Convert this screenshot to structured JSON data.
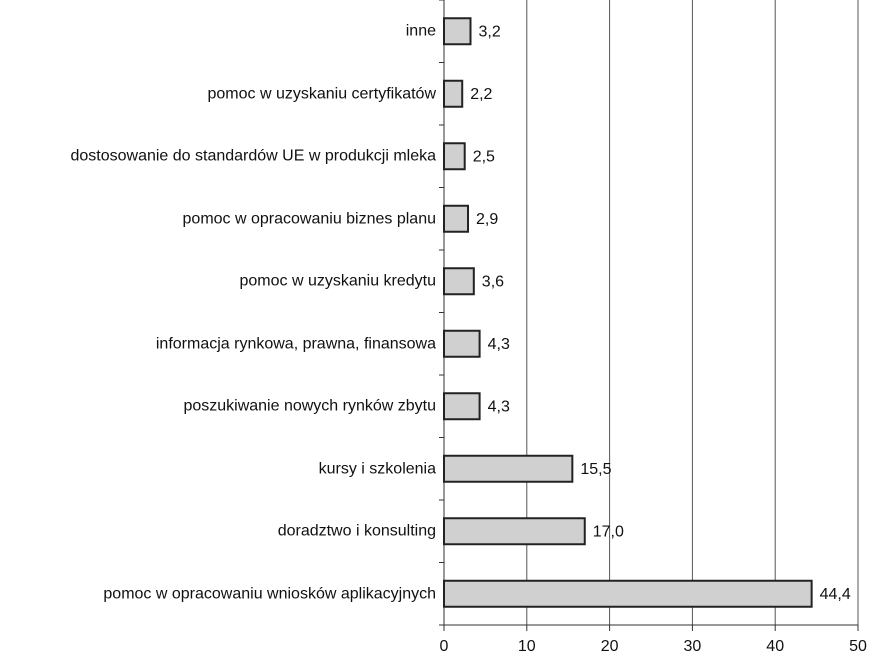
{
  "chart_data": {
    "type": "bar",
    "orientation": "horizontal",
    "categories": [
      "inne",
      "pomoc w uzyskaniu certyfikatów",
      "dostosowanie do standardów UE w produkcji mleka",
      "pomoc w opracowaniu biznes planu",
      "pomoc w uzyskaniu kredytu",
      "informacja rynkowa, prawna, finansowa",
      "poszukiwanie nowych rynków zbytu",
      "kursy i szkolenia",
      "doradztwo i konsulting",
      "pomoc w opracowaniu wniosków aplikacyjnych"
    ],
    "values": [
      3.2,
      2.2,
      2.5,
      2.9,
      3.6,
      4.3,
      4.3,
      15.5,
      17.0,
      44.4
    ],
    "value_labels": [
      "3,2",
      "2,2",
      "2,5",
      "2,9",
      "3,6",
      "4,3",
      "4,3",
      "15,5",
      "17,0",
      "44,4"
    ],
    "color": "#d0d0d0",
    "xlim": [
      0,
      50
    ],
    "xticks": [
      0,
      10,
      20,
      30,
      40,
      50
    ],
    "grid": true
  }
}
